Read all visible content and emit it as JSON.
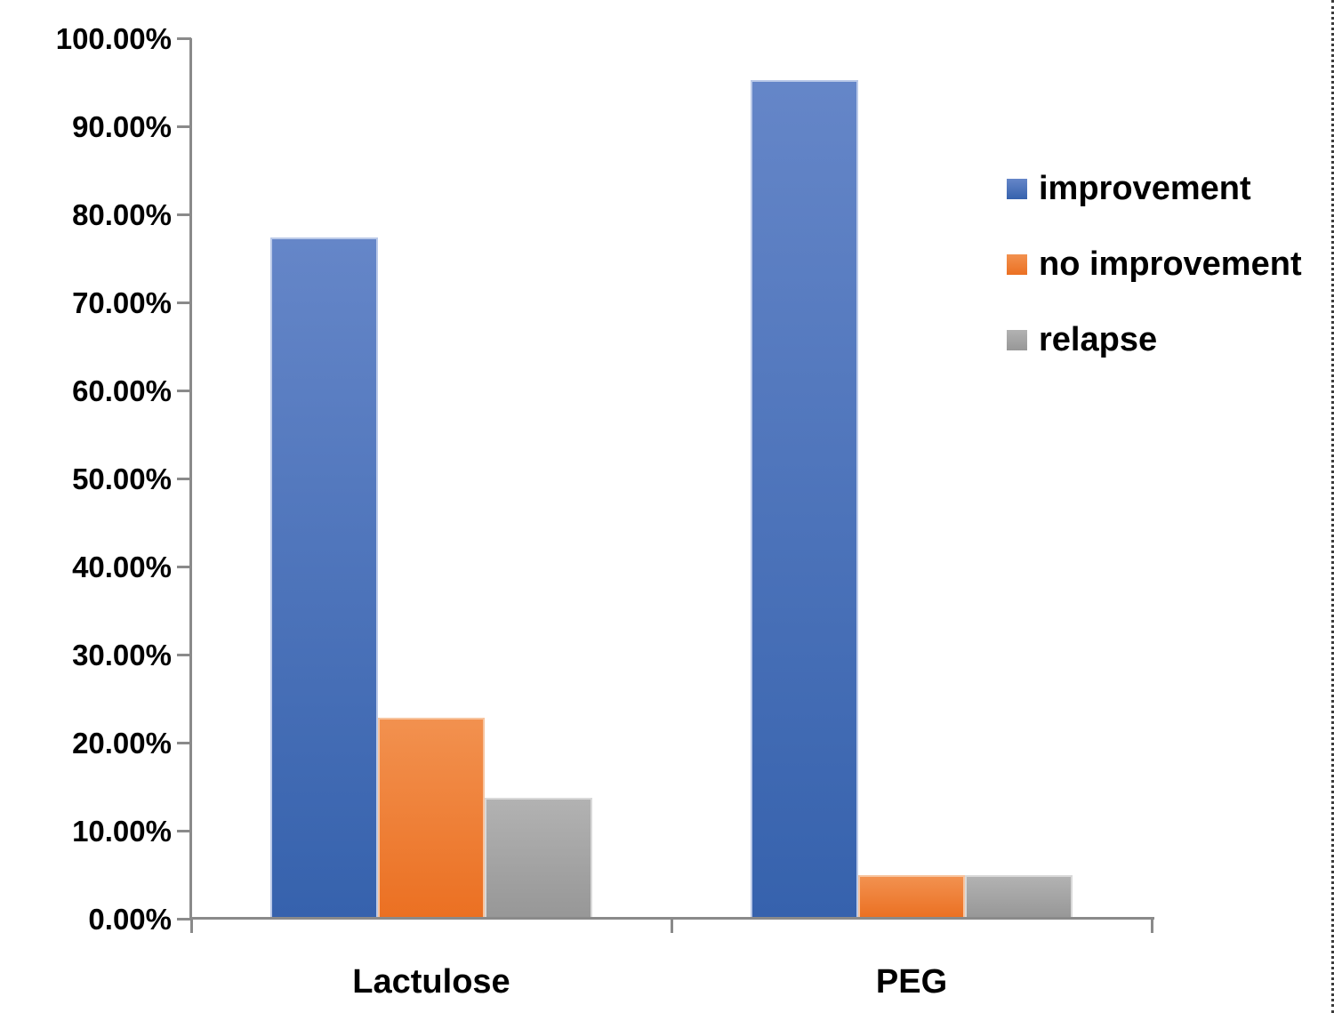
{
  "chart_data": {
    "type": "bar",
    "title": "",
    "categories": [
      "Lactulose",
      "PEG"
    ],
    "series": [
      {
        "name": "improvement",
        "color": "#4472c4",
        "color_top": "#6586c8",
        "color_bottom": "#3662ad",
        "border_color": "#bac9e8",
        "values": [
          77.3,
          95.2
        ]
      },
      {
        "name": "no improvement",
        "color": "#ed7d31",
        "color_top": "#f2914f",
        "color_bottom": "#eb7022",
        "border_color": "#f7c49f",
        "values": [
          22.7,
          4.8
        ]
      },
      {
        "name": "relapse",
        "color": "#a5a5a5",
        "color_top": "#b2b2b2",
        "color_bottom": "#979797",
        "border_color": "#d9d9d9",
        "values": [
          13.6,
          4.8
        ]
      }
    ],
    "y_axis": {
      "tick_labels": [
        "100.00%",
        "90.00%",
        "80.00%",
        "70.00%",
        "60.00%",
        "50.00%",
        "40.00%",
        "30.00%",
        "20.00%",
        "10.00%",
        "0.00%"
      ],
      "min": 0,
      "max": 100,
      "step": 10,
      "unit": "percent"
    },
    "x_axis": {
      "labels": [
        "Lactulose",
        "PEG"
      ]
    },
    "legend": {
      "position": "right",
      "entries": [
        "improvement",
        "no improvement",
        "relapse"
      ]
    },
    "grid": false,
    "axis_color": "#8a8a8a",
    "text_color": "#000000"
  }
}
